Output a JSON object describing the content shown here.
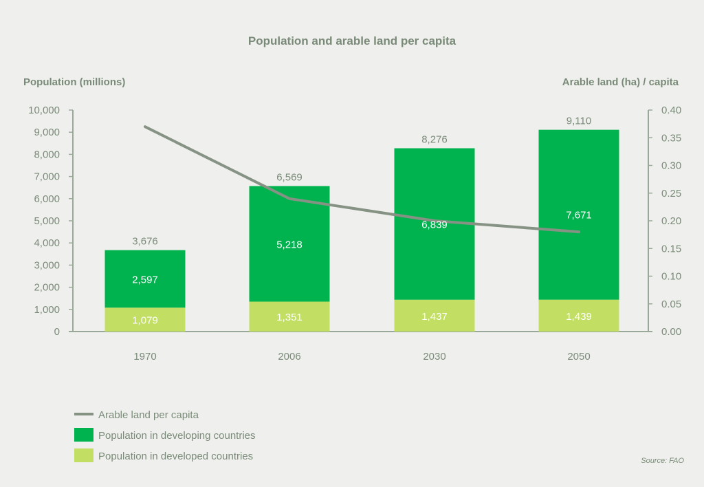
{
  "chart_data": {
    "type": "bar",
    "subtype": "stacked-bar-with-line-secondary-axis",
    "title": "Population and arable land per capita",
    "ylabel": "Population (millions)",
    "y2label": "Arable land (ha) / capita",
    "xlabel": "",
    "categories": [
      "1970",
      "2006",
      "2030",
      "2050"
    ],
    "ylim": [
      0,
      10000
    ],
    "y2lim": [
      0,
      0.4
    ],
    "yticks": [
      0,
      1000,
      2000,
      3000,
      4000,
      5000,
      6000,
      7000,
      8000,
      9000,
      10000
    ],
    "ytick_labels": [
      "0",
      "1,000",
      "2,000",
      "3,000",
      "4,000",
      "5,000",
      "6,000",
      "7,000",
      "8,000",
      "9,000",
      "10,000"
    ],
    "y2ticks": [
      0,
      0.05,
      0.1,
      0.15,
      0.2,
      0.25,
      0.3,
      0.35,
      0.4
    ],
    "y2tick_labels": [
      "0.00",
      "0.05",
      "0.10",
      "0.15",
      "0.20",
      "0.25",
      "0.30",
      "0.35",
      "0.40"
    ],
    "grid": false,
    "series": [
      {
        "name": "Population in developed countries",
        "type": "bar",
        "axis": "left",
        "color": "#c2df64",
        "values": [
          1079,
          1351,
          1437,
          1439
        ],
        "labels": [
          "1,079",
          "1,351",
          "1,437",
          "1,439"
        ]
      },
      {
        "name": "Population in developing countries",
        "type": "bar",
        "axis": "left",
        "color": "#00b34f",
        "values": [
          2597,
          5218,
          6839,
          7671
        ],
        "labels": [
          "2,597",
          "5,218",
          "6,839",
          "7,671"
        ]
      },
      {
        "name": "Arable land per capita",
        "type": "line",
        "axis": "right",
        "color": "#859284",
        "values": [
          0.37,
          0.24,
          0.2,
          0.18
        ]
      }
    ],
    "totals": [
      3676,
      6569,
      8276,
      9110
    ],
    "total_labels": [
      "3,676",
      "6,569",
      "8,276",
      "9,110"
    ],
    "legend": {
      "position": "bottom-left",
      "entries": [
        {
          "label": "Arable land per capita",
          "kind": "line",
          "color": "#859284"
        },
        {
          "label": "Population in developing countries",
          "kind": "box",
          "color": "#00b34f"
        },
        {
          "label": "Population in developed countries",
          "kind": "box",
          "color": "#c2df64"
        }
      ]
    },
    "source": "Source: FAO"
  },
  "colors": {
    "background": "#eff0ed",
    "axis": "#9aa899",
    "text": "#7a8a78",
    "inbar_text": "#ffffff"
  }
}
